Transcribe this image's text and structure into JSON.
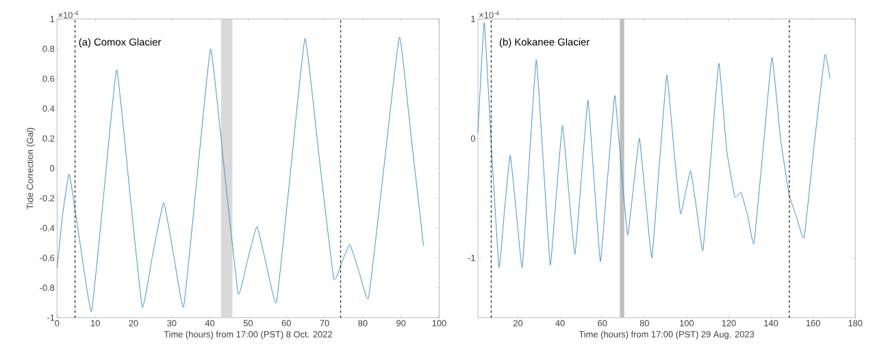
{
  "chart_data": [
    {
      "type": "line",
      "xlabel": "Time (hours) from 17:00 (PST) 8 Oct. 2022",
      "ylabel": "Tide Correction (Gal)",
      "annotations": [
        "(a) Comox Glacier",
        "×10$^{-4}$"
      ],
      "xlim": [
        0,
        100
      ],
      "xticks": [
        0,
        10,
        20,
        30,
        40,
        50,
        60,
        70,
        80,
        90,
        100
      ],
      "ylim": [
        -1,
        1
      ],
      "yticks": [
        -1,
        -0.8,
        -0.6,
        -0.4,
        -0.2,
        0,
        0.2,
        0.4,
        0.6,
        0.8,
        1
      ],
      "ref_lines": [
        {
          "axis": "x",
          "value": 4.7,
          "color": "#000000",
          "line_style": "dashdot"
        },
        {
          "axis": "x",
          "value": 74.2,
          "color": "#000000",
          "line_style": "dashdot"
        }
      ],
      "bands": [
        {
          "axis": "x",
          "from": 42.9,
          "to": 45.9,
          "color": "#d9d9d9"
        }
      ],
      "series": [
        {
          "color": "#3d8fc7",
          "x": [
            0,
            1.5,
            3.2,
            6,
            9.0,
            12.3,
            15.6,
            19,
            22.3,
            25,
            27.9,
            30.5,
            33.1,
            36.6,
            40.2,
            43.8,
            47.4,
            49.8,
            52.3,
            54.8,
            57.4,
            61.1,
            64.9,
            68.6,
            72.4,
            74.5,
            76.6,
            79,
            81.5,
            85.5,
            89.6,
            92.7,
            95.9
          ],
          "values": [
            -0.67,
            -0.3,
            -0.04,
            -0.5,
            -0.96,
            -0.15,
            0.66,
            -0.15,
            -0.93,
            -0.58,
            -0.23,
            -0.58,
            -0.93,
            -0.07,
            0.8,
            -0.02,
            -0.84,
            -0.62,
            -0.39,
            -0.65,
            -0.9,
            -0.02,
            0.87,
            0.07,
            -0.74,
            -0.63,
            -0.51,
            -0.69,
            -0.87,
            0.0,
            0.88,
            0.2,
            -0.52
          ]
        }
      ]
    },
    {
      "type": "line",
      "xlabel": "Time (hours) from 17:00 (PST) 29 Aug. 2023",
      "annotations": [
        "(b) Kokanee Glacier",
        "×10$^{-4}$"
      ],
      "xlim": [
        1,
        180
      ],
      "xticks": [
        20,
        40,
        60,
        80,
        100,
        120,
        140,
        160,
        180
      ],
      "ylim": [
        -1.5,
        1
      ],
      "yticks": [
        -1,
        0,
        1
      ],
      "ref_lines": [
        {
          "axis": "x",
          "value": 7.3,
          "color": "#000000",
          "line_style": "dashdot"
        },
        {
          "axis": "x",
          "value": 148.7,
          "color": "#000000",
          "line_style": "dashdot"
        }
      ],
      "bands": [
        {
          "axis": "x",
          "from": 68.3,
          "to": 70.4,
          "color": "#bfbfbf"
        }
      ],
      "series": [
        {
          "color": "#3d8fc7",
          "x": [
            1,
            4.0,
            7.5,
            11.0,
            13.6,
            16.3,
            19.1,
            22.0,
            25.3,
            28.7,
            32,
            35.3,
            38.2,
            41.1,
            44,
            47.0,
            50.1,
            53.2,
            56.1,
            59.1,
            62.5,
            65.9,
            69,
            72.0,
            74.8,
            77.6,
            80.5,
            83.5,
            87,
            90.6,
            94,
            97.1,
            99.5,
            101.9,
            104.8,
            107.7,
            111.5,
            115.3,
            119,
            122.9,
            125.8,
            129,
            131.9,
            136.2,
            140.5,
            144.5,
            148.6,
            152,
            155.7,
            160.5,
            165.6,
            168.0
          ],
          "values": [
            0.05,
            0.97,
            -0.1,
            -1.08,
            -0.6,
            -0.14,
            -0.6,
            -1.08,
            -0.2,
            0.66,
            -0.2,
            -1.06,
            -0.47,
            0.11,
            -0.43,
            -0.97,
            -0.32,
            0.32,
            -0.35,
            -1.03,
            -0.33,
            0.36,
            -0.25,
            -0.81,
            -0.4,
            0.0,
            -0.5,
            -1.0,
            -0.23,
            0.53,
            -0.1,
            -0.63,
            -0.45,
            -0.27,
            -0.6,
            -0.94,
            -0.15,
            0.63,
            -0.1,
            -0.49,
            -0.45,
            -0.65,
            -0.88,
            -0.1,
            0.68,
            0.0,
            -0.47,
            -0.65,
            -0.83,
            -0.05,
            0.7,
            0.5
          ]
        }
      ]
    }
  ]
}
